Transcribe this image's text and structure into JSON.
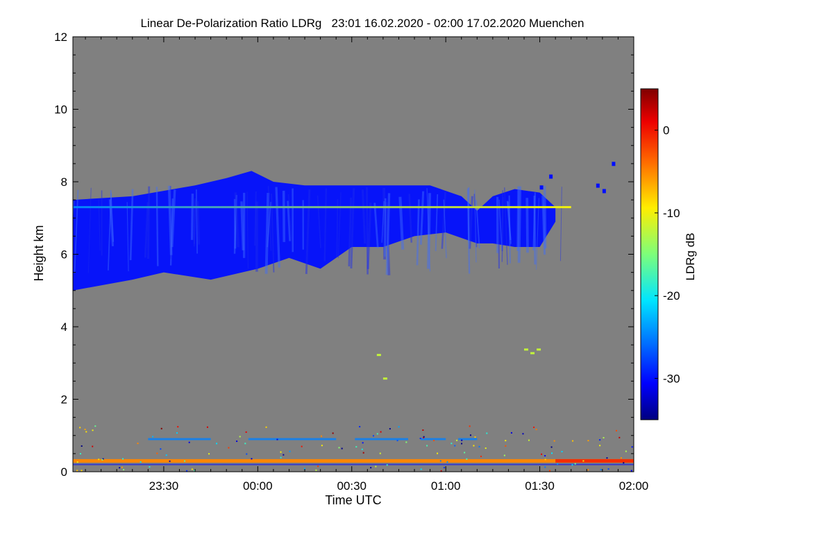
{
  "chart_data": {
    "type": "heatmap",
    "title": "Linear De-Polarization Ratio LDRg   23:01 16.02.2020 - 02:00 17.02.2020 Muenchen",
    "xlabel": "Time UTC",
    "ylabel": "Height km",
    "xlim": [
      "23:01",
      "02:00"
    ],
    "ylim": [
      0,
      12
    ],
    "x_ticks": [
      "23:30",
      "00:00",
      "00:30",
      "01:00",
      "01:30",
      "02:00"
    ],
    "y_ticks": [
      0,
      2,
      4,
      6,
      8,
      10,
      12
    ],
    "colorbar": {
      "label": "LDRg dB",
      "range": [
        -35,
        5
      ],
      "ticks": [
        0,
        -10,
        -20,
        -30
      ],
      "colormap": "jet"
    },
    "background_color": "#808080",
    "cloud_layer": {
      "top_km": [
        {
          "time": "23:01",
          "value": 7.5
        },
        {
          "time": "23:20",
          "value": 7.6
        },
        {
          "time": "23:40",
          "value": 7.9
        },
        {
          "time": "23:50",
          "value": 8.1
        },
        {
          "time": "23:58",
          "value": 8.3
        },
        {
          "time": "00:05",
          "value": 8.0
        },
        {
          "time": "00:15",
          "value": 7.9
        },
        {
          "time": "00:30",
          "value": 7.9
        },
        {
          "time": "00:45",
          "value": 7.9
        },
        {
          "time": "00:55",
          "value": 7.9
        },
        {
          "time": "01:05",
          "value": 7.6
        },
        {
          "time": "01:10",
          "value": 7.2
        },
        {
          "time": "01:15",
          "value": 7.6
        },
        {
          "time": "01:22",
          "value": 7.8
        },
        {
          "time": "01:30",
          "value": 7.7
        },
        {
          "time": "01:35",
          "value": 7.3
        }
      ],
      "base_km": [
        {
          "time": "23:01",
          "value": 5.0
        },
        {
          "time": "23:20",
          "value": 5.3
        },
        {
          "time": "23:30",
          "value": 5.5
        },
        {
          "time": "23:45",
          "value": 5.3
        },
        {
          "time": "00:00",
          "value": 5.6
        },
        {
          "time": "00:10",
          "value": 5.9
        },
        {
          "time": "00:20",
          "value": 5.6
        },
        {
          "time": "00:30",
          "value": 6.2
        },
        {
          "time": "00:40",
          "value": 6.2
        },
        {
          "time": "00:50",
          "value": 6.5
        },
        {
          "time": "01:00",
          "value": 6.6
        },
        {
          "time": "01:10",
          "value": 6.3
        },
        {
          "time": "01:15",
          "value": 6.3
        },
        {
          "time": "01:22",
          "value": 6.2
        },
        {
          "time": "01:30",
          "value": 6.2
        },
        {
          "time": "01:35",
          "value": 6.9
        }
      ],
      "ldr_db": -30
    },
    "bright_band": {
      "height_km": 7.3,
      "start": "23:01",
      "end": "01:40",
      "ldr_db_start": -25,
      "ldr_db_end": -10
    },
    "near_surface_layer": {
      "height_km": 0.3,
      "ldr_db": -5
    },
    "low_layer": {
      "height_km": 0.9,
      "ldr_db": -25
    }
  }
}
